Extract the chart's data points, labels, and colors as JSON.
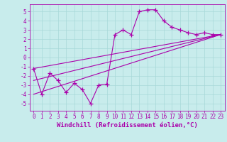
{
  "background_color": "#c8ecec",
  "grid_color": "#a8d8d8",
  "line_color": "#aa00aa",
  "marker": "+",
  "markersize": 4,
  "linewidth": 0.8,
  "xlabel": "Windchill (Refroidissement éolien,°C)",
  "xlabel_fontsize": 6.5,
  "xlabel_color": "#aa00aa",
  "tick_color": "#aa00aa",
  "tick_fontsize": 5.5,
  "xlim": [
    -0.5,
    23.5
  ],
  "ylim": [
    -5.8,
    5.8
  ],
  "yticks": [
    -5,
    -4,
    -3,
    -2,
    -1,
    0,
    1,
    2,
    3,
    4,
    5
  ],
  "xticks": [
    0,
    1,
    2,
    3,
    4,
    5,
    6,
    7,
    8,
    9,
    10,
    11,
    12,
    13,
    14,
    15,
    16,
    17,
    18,
    19,
    20,
    21,
    22,
    23
  ],
  "series": [
    [
      0,
      -1.2
    ],
    [
      1,
      -4.0
    ],
    [
      2,
      -1.7
    ],
    [
      3,
      -2.5
    ],
    [
      4,
      -3.8
    ],
    [
      5,
      -2.8
    ],
    [
      6,
      -3.5
    ],
    [
      7,
      -5.0
    ],
    [
      8,
      -3.0
    ],
    [
      9,
      -2.9
    ],
    [
      10,
      2.5
    ],
    [
      11,
      3.0
    ],
    [
      12,
      2.5
    ],
    [
      13,
      5.0
    ],
    [
      14,
      5.2
    ],
    [
      15,
      5.2
    ],
    [
      16,
      4.0
    ],
    [
      17,
      3.3
    ],
    [
      18,
      3.0
    ],
    [
      19,
      2.7
    ],
    [
      20,
      2.5
    ],
    [
      21,
      2.7
    ],
    [
      22,
      2.5
    ],
    [
      23,
      2.5
    ]
  ],
  "line1": [
    [
      0,
      -1.2
    ],
    [
      23,
      2.5
    ]
  ],
  "line2": [
    [
      0,
      -2.5
    ],
    [
      23,
      2.5
    ]
  ],
  "line3": [
    [
      0,
      -4.0
    ],
    [
      23,
      2.5
    ]
  ]
}
